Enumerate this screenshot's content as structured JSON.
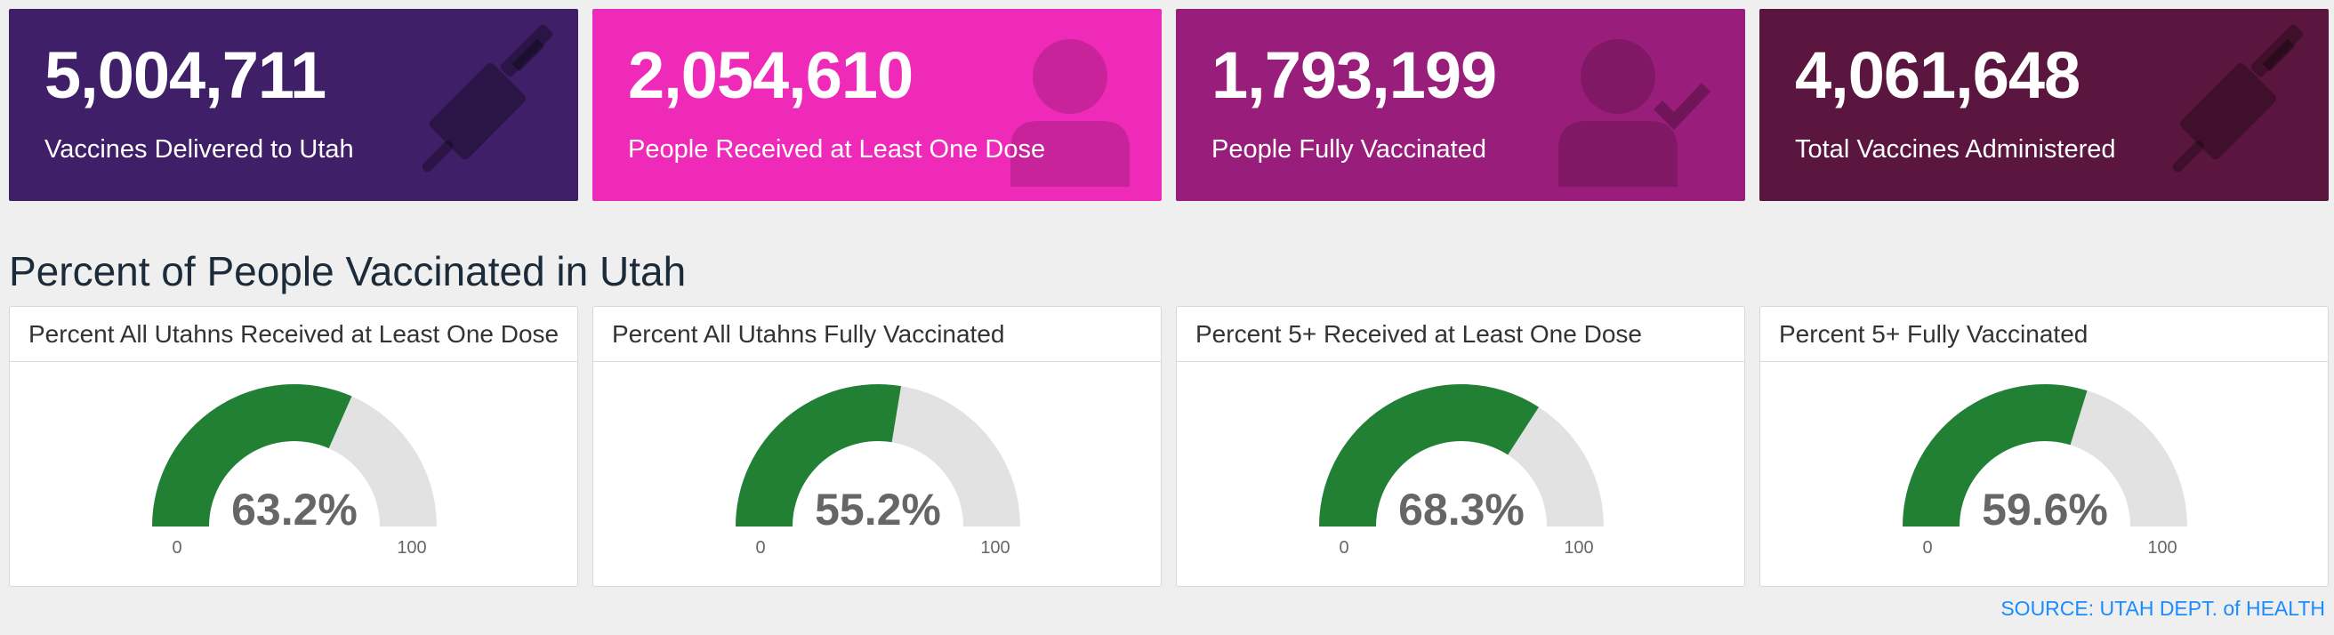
{
  "stats": [
    {
      "value": "5,004,711",
      "label": "Vaccines Delivered to Utah",
      "color": "#3f2068",
      "icon": "syringe-icon"
    },
    {
      "value": "2,054,610",
      "label": "People Received at Least One Dose",
      "color": "#ef2ab8",
      "icon": "person-icon"
    },
    {
      "value": "1,793,199",
      "label": "People Fully Vaccinated",
      "color": "#991d7a",
      "icon": "person-check-icon"
    },
    {
      "value": "4,061,648",
      "label": "Total Vaccines Administered",
      "color": "#5b163f",
      "icon": "syringe-icon"
    }
  ],
  "section_title": "Percent of People Vaccinated in Utah",
  "gauges": [
    {
      "title": "Percent All Utahns Received at Least One Dose",
      "value": 63.2,
      "value_label": "63.2%",
      "min_label": "0",
      "max_label": "100"
    },
    {
      "title": "Percent All Utahns Fully Vaccinated",
      "value": 55.2,
      "value_label": "55.2%",
      "min_label": "0",
      "max_label": "100"
    },
    {
      "title": "Percent 5+ Received at Least One Dose",
      "value": 68.3,
      "value_label": "68.3%",
      "min_label": "0",
      "max_label": "100"
    },
    {
      "title": "Percent 5+ Fully Vaccinated",
      "value": 59.6,
      "value_label": "59.6%",
      "min_label": "0",
      "max_label": "100"
    }
  ],
  "colors": {
    "gauge_fill": "#228034",
    "gauge_track": "#e2e2e2",
    "gauge_value_text": "#666666",
    "source_link": "#1a8cff"
  },
  "source": "SOURCE: UTAH DEPT. of HEALTH"
}
